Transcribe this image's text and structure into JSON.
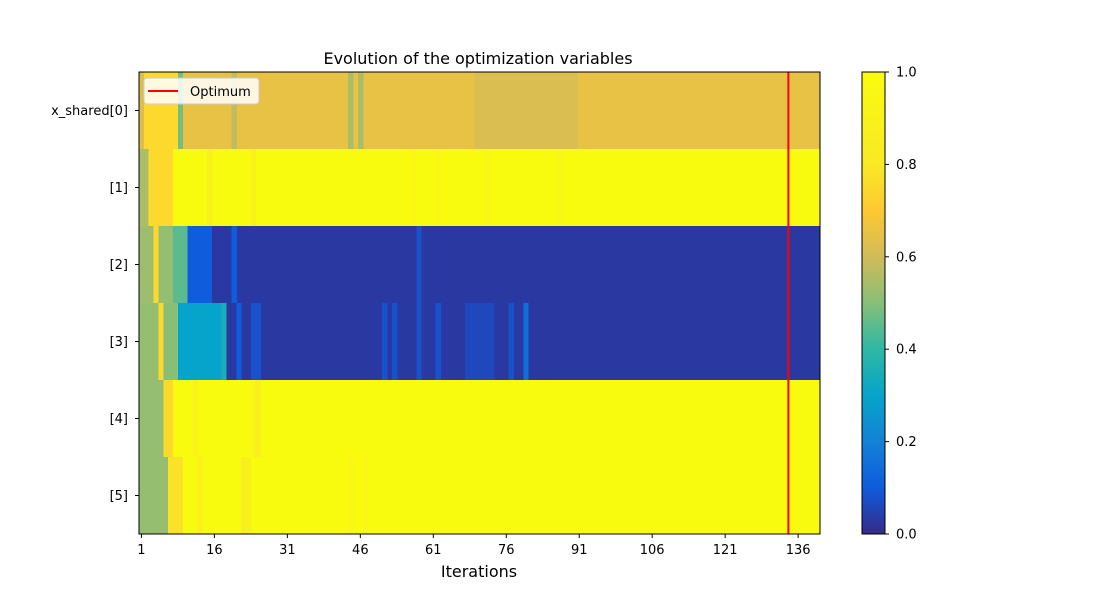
{
  "chart_data": {
    "type": "heatmap",
    "title": "Evolution of the optimization variables",
    "xlabel": "Iterations",
    "ylabel": "",
    "x_ticks": [
      1,
      16,
      31,
      46,
      61,
      76,
      91,
      106,
      121,
      136
    ],
    "x_range": [
      1,
      140
    ],
    "rows": [
      "x_shared[0]",
      "[1]",
      "[2]",
      "[3]",
      "[4]",
      "[5]"
    ],
    "colorbar": {
      "range": [
        0,
        1
      ],
      "ticks": [
        "0.0",
        "0.2",
        "0.4",
        "0.6",
        "0.8",
        "1.0"
      ],
      "colormap": "parula"
    },
    "optimum": {
      "label": "Optimum",
      "iteration": 134,
      "color": "#ff0000"
    },
    "legend_position": "top-left",
    "segments": [
      [
        {
          "from": 1,
          "to": 1,
          "value": 0.62
        },
        {
          "from": 2,
          "to": 8,
          "value": 0.75
        },
        {
          "from": 9,
          "to": 9,
          "value": 0.48
        },
        {
          "from": 10,
          "to": 140,
          "value": 0.65
        },
        {
          "from": 20,
          "to": 20,
          "value": 0.58
        },
        {
          "from": 44,
          "to": 44,
          "value": 0.55
        },
        {
          "from": 46,
          "to": 46,
          "value": 0.55
        },
        {
          "from": 70,
          "to": 90,
          "value": 0.62
        }
      ],
      [
        {
          "from": 1,
          "to": 2,
          "value": 0.55
        },
        {
          "from": 3,
          "to": 7,
          "value": 0.75
        },
        {
          "from": 8,
          "to": 140,
          "value": 1.0
        },
        {
          "from": 15,
          "to": 15,
          "value": 0.88
        },
        {
          "from": 24,
          "to": 24,
          "value": 0.9
        },
        {
          "from": 57,
          "to": 57,
          "value": 0.96
        },
        {
          "from": 62,
          "to": 62,
          "value": 0.96
        },
        {
          "from": 72,
          "to": 72,
          "value": 0.96
        },
        {
          "from": 87,
          "to": 87,
          "value": 0.95
        }
      ],
      [
        {
          "from": 1,
          "to": 3,
          "value": 0.53
        },
        {
          "from": 4,
          "to": 4,
          "value": 0.75
        },
        {
          "from": 5,
          "to": 7,
          "value": 0.52
        },
        {
          "from": 8,
          "to": 10,
          "value": 0.45
        },
        {
          "from": 11,
          "to": 15,
          "value": 0.1
        },
        {
          "from": 16,
          "to": 140,
          "value": 0.03
        },
        {
          "from": 20,
          "to": 20,
          "value": 0.1
        },
        {
          "from": 58,
          "to": 58,
          "value": 0.08
        }
      ],
      [
        {
          "from": 1,
          "to": 4,
          "value": 0.52
        },
        {
          "from": 5,
          "to": 5,
          "value": 0.75
        },
        {
          "from": 6,
          "to": 8,
          "value": 0.5
        },
        {
          "from": 9,
          "to": 17,
          "value": 0.3
        },
        {
          "from": 18,
          "to": 18,
          "value": 0.35
        },
        {
          "from": 19,
          "to": 140,
          "value": 0.03
        },
        {
          "from": 21,
          "to": 21,
          "value": 0.1
        },
        {
          "from": 24,
          "to": 24,
          "value": 0.08
        },
        {
          "from": 25,
          "to": 25,
          "value": 0.08
        },
        {
          "from": 51,
          "to": 51,
          "value": 0.08
        },
        {
          "from": 53,
          "to": 53,
          "value": 0.08
        },
        {
          "from": 58,
          "to": 58,
          "value": 0.08
        },
        {
          "from": 62,
          "to": 62,
          "value": 0.08
        },
        {
          "from": 68,
          "to": 73,
          "value": 0.06
        },
        {
          "from": 77,
          "to": 77,
          "value": 0.08
        },
        {
          "from": 80,
          "to": 80,
          "value": 0.15
        }
      ],
      [
        {
          "from": 1,
          "to": 5,
          "value": 0.52
        },
        {
          "from": 6,
          "to": 7,
          "value": 0.75
        },
        {
          "from": 8,
          "to": 140,
          "value": 1.0
        },
        {
          "from": 12,
          "to": 12,
          "value": 0.92
        },
        {
          "from": 24,
          "to": 24,
          "value": 0.96
        },
        {
          "from": 25,
          "to": 25,
          "value": 0.85
        }
      ],
      [
        {
          "from": 1,
          "to": 6,
          "value": 0.52
        },
        {
          "from": 7,
          "to": 9,
          "value": 0.78
        },
        {
          "from": 10,
          "to": 140,
          "value": 1.0
        },
        {
          "from": 13,
          "to": 13,
          "value": 0.88
        },
        {
          "from": 22,
          "to": 22,
          "value": 0.86
        },
        {
          "from": 23,
          "to": 23,
          "value": 0.9
        },
        {
          "from": 44,
          "to": 44,
          "value": 0.96
        },
        {
          "from": 47,
          "to": 47,
          "value": 0.96
        }
      ]
    ]
  }
}
